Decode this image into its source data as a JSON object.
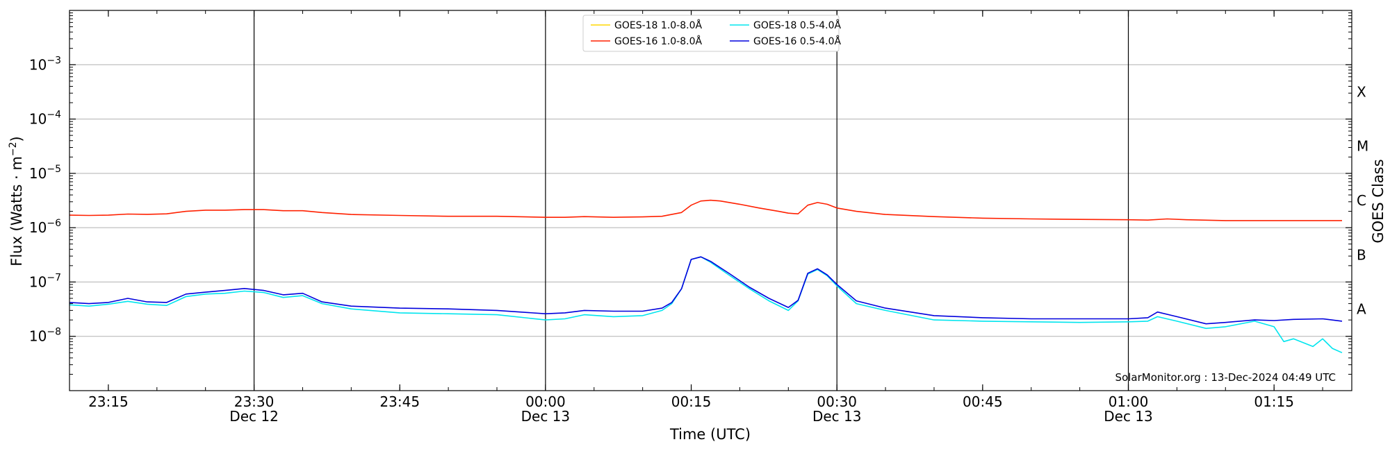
{
  "chart_data": {
    "type": "line",
    "ylabel": "Flux (Watts · m",
    "ylabel_exp": "−2",
    "ylabel_close": ")",
    "xlabel": "Time (UTC)",
    "right_label": "GOES Class",
    "credit": "SolarMonitor.org : 13-Dec-2024 04:49 UTC",
    "y_scale": "log",
    "ylim": [
      1e-09,
      0.01
    ],
    "xlim": [
      "2024-12-12 23:11",
      "2024-12-13 01:23"
    ],
    "grid": "horizontal",
    "legend_position": "top-center",
    "y_ticks": [
      {
        "value": 1e-08,
        "base": "10",
        "exp": "−8"
      },
      {
        "value": 1e-07,
        "base": "10",
        "exp": "−7"
      },
      {
        "value": 1e-06,
        "base": "10",
        "exp": "−6"
      },
      {
        "value": 1e-05,
        "base": "10",
        "exp": "−5"
      },
      {
        "value": 0.0001,
        "base": "10",
        "exp": "−4"
      },
      {
        "value": 0.001,
        "base": "10",
        "exp": "−3"
      }
    ],
    "x_ticks": [
      {
        "time": "2024-12-12 23:15",
        "label": "23:15",
        "sublabel": ""
      },
      {
        "time": "2024-12-12 23:30",
        "label": "23:30",
        "sublabel": "Dec 12"
      },
      {
        "time": "2024-12-12 23:45",
        "label": "23:45",
        "sublabel": ""
      },
      {
        "time": "2024-12-13 00:00",
        "label": "00:00",
        "sublabel": "Dec 13"
      },
      {
        "time": "2024-12-13 00:15",
        "label": "00:15",
        "sublabel": ""
      },
      {
        "time": "2024-12-13 00:30",
        "label": "00:30",
        "sublabel": "Dec 13"
      },
      {
        "time": "2024-12-13 00:45",
        "label": "00:45",
        "sublabel": ""
      },
      {
        "time": "2024-12-13 01:00",
        "label": "01:00",
        "sublabel": "Dec 13"
      },
      {
        "time": "2024-12-13 01:15",
        "label": "01:15",
        "sublabel": ""
      }
    ],
    "vlines": [
      "2024-12-12 23:30",
      "2024-12-13 00:00",
      "2024-12-13 00:30",
      "2024-12-13 01:00"
    ],
    "goes_classes": [
      {
        "label": "A",
        "value": 3.16e-08
      },
      {
        "label": "B",
        "value": 3.16e-07
      },
      {
        "label": "C",
        "value": 3.16e-06
      },
      {
        "label": "M",
        "value": 3.16e-05
      },
      {
        "label": "X",
        "value": 0.000316
      }
    ],
    "series": [
      {
        "name": "GOES-18 1.0-8.0Å",
        "color": "#ffd700",
        "points": []
      },
      {
        "name": "GOES-16 1.0-8.0Å",
        "color": "#ff2000",
        "points": [
          [
            "2024-12-12 23:11",
            1.7e-06
          ],
          [
            "2024-12-12 23:13",
            1.68e-06
          ],
          [
            "2024-12-12 23:15",
            1.7e-06
          ],
          [
            "2024-12-12 23:17",
            1.78e-06
          ],
          [
            "2024-12-12 23:19",
            1.76e-06
          ],
          [
            "2024-12-12 23:21",
            1.8e-06
          ],
          [
            "2024-12-12 23:23",
            2e-06
          ],
          [
            "2024-12-12 23:25",
            2.1e-06
          ],
          [
            "2024-12-12 23:27",
            2.1e-06
          ],
          [
            "2024-12-12 23:29",
            2.15e-06
          ],
          [
            "2024-12-12 23:31",
            2.15e-06
          ],
          [
            "2024-12-12 23:33",
            2.05e-06
          ],
          [
            "2024-12-12 23:35",
            2.05e-06
          ],
          [
            "2024-12-12 23:37",
            1.9e-06
          ],
          [
            "2024-12-12 23:40",
            1.75e-06
          ],
          [
            "2024-12-12 23:45",
            1.68e-06
          ],
          [
            "2024-12-12 23:50",
            1.62e-06
          ],
          [
            "2024-12-12 23:55",
            1.62e-06
          ],
          [
            "2024-12-13 00:00",
            1.55e-06
          ],
          [
            "2024-12-13 00:02",
            1.55e-06
          ],
          [
            "2024-12-13 00:04",
            1.6e-06
          ],
          [
            "2024-12-13 00:07",
            1.55e-06
          ],
          [
            "2024-12-13 00:10",
            1.58e-06
          ],
          [
            "2024-12-13 00:12",
            1.62e-06
          ],
          [
            "2024-12-13 00:14",
            1.9e-06
          ],
          [
            "2024-12-13 00:15",
            2.6e-06
          ],
          [
            "2024-12-13 00:16",
            3.1e-06
          ],
          [
            "2024-12-13 00:17",
            3.2e-06
          ],
          [
            "2024-12-13 00:18",
            3.1e-06
          ],
          [
            "2024-12-13 00:20",
            2.7e-06
          ],
          [
            "2024-12-13 00:22",
            2.3e-06
          ],
          [
            "2024-12-13 00:24",
            2e-06
          ],
          [
            "2024-12-13 00:25",
            1.85e-06
          ],
          [
            "2024-12-13 00:26",
            1.8e-06
          ],
          [
            "2024-12-13 00:27",
            2.6e-06
          ],
          [
            "2024-12-13 00:28",
            2.9e-06
          ],
          [
            "2024-12-13 00:29",
            2.7e-06
          ],
          [
            "2024-12-13 00:30",
            2.3e-06
          ],
          [
            "2024-12-13 00:32",
            2e-06
          ],
          [
            "2024-12-13 00:35",
            1.75e-06
          ],
          [
            "2024-12-13 00:40",
            1.6e-06
          ],
          [
            "2024-12-13 00:45",
            1.5e-06
          ],
          [
            "2024-12-13 00:50",
            1.45e-06
          ],
          [
            "2024-12-13 00:55",
            1.42e-06
          ],
          [
            "2024-12-13 01:00",
            1.4e-06
          ],
          [
            "2024-12-13 01:02",
            1.38e-06
          ],
          [
            "2024-12-13 01:04",
            1.45e-06
          ],
          [
            "2024-12-13 01:06",
            1.4e-06
          ],
          [
            "2024-12-13 01:10",
            1.35e-06
          ],
          [
            "2024-12-13 01:15",
            1.35e-06
          ],
          [
            "2024-12-13 01:22",
            1.35e-06
          ]
        ]
      },
      {
        "name": "GOES-18 0.5-4.0Å",
        "color": "#00e5ee",
        "points": [
          [
            "2024-12-12 23:11",
            3.8e-08
          ],
          [
            "2024-12-12 23:13",
            3.6e-08
          ],
          [
            "2024-12-12 23:15",
            3.9e-08
          ],
          [
            "2024-12-12 23:17",
            4.4e-08
          ],
          [
            "2024-12-12 23:19",
            3.9e-08
          ],
          [
            "2024-12-12 23:21",
            3.7e-08
          ],
          [
            "2024-12-12 23:23",
            5.4e-08
          ],
          [
            "2024-12-12 23:25",
            6e-08
          ],
          [
            "2024-12-12 23:27",
            6.2e-08
          ],
          [
            "2024-12-12 23:29",
            6.8e-08
          ],
          [
            "2024-12-12 23:31",
            6.4e-08
          ],
          [
            "2024-12-12 23:33",
            5.2e-08
          ],
          [
            "2024-12-12 23:35",
            5.6e-08
          ],
          [
            "2024-12-12 23:37",
            4e-08
          ],
          [
            "2024-12-12 23:40",
            3.2e-08
          ],
          [
            "2024-12-12 23:45",
            2.7e-08
          ],
          [
            "2024-12-12 23:50",
            2.6e-08
          ],
          [
            "2024-12-12 23:55",
            2.5e-08
          ],
          [
            "2024-12-13 00:00",
            2e-08
          ],
          [
            "2024-12-13 00:02",
            2.1e-08
          ],
          [
            "2024-12-13 00:04",
            2.5e-08
          ],
          [
            "2024-12-13 00:07",
            2.3e-08
          ],
          [
            "2024-12-13 00:10",
            2.4e-08
          ],
          [
            "2024-12-13 00:12",
            3e-08
          ],
          [
            "2024-12-13 00:13",
            4e-08
          ],
          [
            "2024-12-13 00:14",
            7.5e-08
          ],
          [
            "2024-12-13 00:15",
            2.6e-07
          ],
          [
            "2024-12-13 00:16",
            2.9e-07
          ],
          [
            "2024-12-13 00:17",
            2.3e-07
          ],
          [
            "2024-12-13 00:19",
            1.3e-07
          ],
          [
            "2024-12-13 00:21",
            7.5e-08
          ],
          [
            "2024-12-13 00:23",
            4.5e-08
          ],
          [
            "2024-12-13 00:25",
            3e-08
          ],
          [
            "2024-12-13 00:26",
            4.5e-08
          ],
          [
            "2024-12-13 00:27",
            1.4e-07
          ],
          [
            "2024-12-13 00:28",
            1.7e-07
          ],
          [
            "2024-12-13 00:29",
            1.3e-07
          ],
          [
            "2024-12-13 00:30",
            8.5e-08
          ],
          [
            "2024-12-13 00:32",
            4e-08
          ],
          [
            "2024-12-13 00:35",
            3e-08
          ],
          [
            "2024-12-13 00:40",
            2e-08
          ],
          [
            "2024-12-13 00:45",
            1.9e-08
          ],
          [
            "2024-12-13 00:50",
            1.85e-08
          ],
          [
            "2024-12-13 00:55",
            1.8e-08
          ],
          [
            "2024-12-13 01:00",
            1.85e-08
          ],
          [
            "2024-12-13 01:02",
            1.9e-08
          ],
          [
            "2024-12-13 01:03",
            2.3e-08
          ],
          [
            "2024-12-13 01:05",
            1.9e-08
          ],
          [
            "2024-12-13 01:08",
            1.4e-08
          ],
          [
            "2024-12-13 01:10",
            1.5e-08
          ],
          [
            "2024-12-13 01:13",
            1.9e-08
          ],
          [
            "2024-12-13 01:15",
            1.5e-08
          ],
          [
            "2024-12-13 01:16",
            8e-09
          ],
          [
            "2024-12-13 01:17",
            9e-09
          ],
          [
            "2024-12-13 01:19",
            6.5e-09
          ],
          [
            "2024-12-13 01:20",
            9e-09
          ],
          [
            "2024-12-13 01:21",
            6e-09
          ],
          [
            "2024-12-13 01:22",
            5e-09
          ]
        ]
      },
      {
        "name": "GOES-16 0.5-4.0Å",
        "color": "#0000dd",
        "points": [
          [
            "2024-12-12 23:11",
            4.2e-08
          ],
          [
            "2024-12-12 23:13",
            4e-08
          ],
          [
            "2024-12-12 23:15",
            4.2e-08
          ],
          [
            "2024-12-12 23:17",
            5e-08
          ],
          [
            "2024-12-12 23:19",
            4.3e-08
          ],
          [
            "2024-12-12 23:21",
            4.2e-08
          ],
          [
            "2024-12-12 23:23",
            6e-08
          ],
          [
            "2024-12-12 23:25",
            6.5e-08
          ],
          [
            "2024-12-12 23:27",
            7e-08
          ],
          [
            "2024-12-12 23:29",
            7.6e-08
          ],
          [
            "2024-12-12 23:31",
            7e-08
          ],
          [
            "2024-12-12 23:33",
            5.8e-08
          ],
          [
            "2024-12-12 23:35",
            6.2e-08
          ],
          [
            "2024-12-12 23:37",
            4.3e-08
          ],
          [
            "2024-12-12 23:40",
            3.6e-08
          ],
          [
            "2024-12-12 23:45",
            3.3e-08
          ],
          [
            "2024-12-12 23:50",
            3.2e-08
          ],
          [
            "2024-12-12 23:55",
            3e-08
          ],
          [
            "2024-12-13 00:00",
            2.6e-08
          ],
          [
            "2024-12-13 00:02",
            2.7e-08
          ],
          [
            "2024-12-13 00:04",
            3e-08
          ],
          [
            "2024-12-13 00:07",
            2.9e-08
          ],
          [
            "2024-12-13 00:10",
            2.9e-08
          ],
          [
            "2024-12-13 00:12",
            3.3e-08
          ],
          [
            "2024-12-13 00:13",
            4.2e-08
          ],
          [
            "2024-12-13 00:14",
            7.5e-08
          ],
          [
            "2024-12-13 00:15",
            2.6e-07
          ],
          [
            "2024-12-13 00:16",
            2.9e-07
          ],
          [
            "2024-12-13 00:17",
            2.4e-07
          ],
          [
            "2024-12-13 00:19",
            1.4e-07
          ],
          [
            "2024-12-13 00:21",
            8e-08
          ],
          [
            "2024-12-13 00:23",
            5e-08
          ],
          [
            "2024-12-13 00:25",
            3.4e-08
          ],
          [
            "2024-12-13 00:26",
            4.6e-08
          ],
          [
            "2024-12-13 00:27",
            1.45e-07
          ],
          [
            "2024-12-13 00:28",
            1.75e-07
          ],
          [
            "2024-12-13 00:29",
            1.35e-07
          ],
          [
            "2024-12-13 00:30",
            9e-08
          ],
          [
            "2024-12-13 00:32",
            4.5e-08
          ],
          [
            "2024-12-13 00:35",
            3.3e-08
          ],
          [
            "2024-12-13 00:40",
            2.4e-08
          ],
          [
            "2024-12-13 00:45",
            2.2e-08
          ],
          [
            "2024-12-13 00:50",
            2.1e-08
          ],
          [
            "2024-12-13 00:55",
            2.1e-08
          ],
          [
            "2024-12-13 01:00",
            2.1e-08
          ],
          [
            "2024-12-13 01:02",
            2.2e-08
          ],
          [
            "2024-12-13 01:03",
            2.8e-08
          ],
          [
            "2024-12-13 01:05",
            2.3e-08
          ],
          [
            "2024-12-13 01:08",
            1.7e-08
          ],
          [
            "2024-12-13 01:10",
            1.8e-08
          ],
          [
            "2024-12-13 01:13",
            2e-08
          ],
          [
            "2024-12-13 01:15",
            1.95e-08
          ],
          [
            "2024-12-13 01:17",
            2.05e-08
          ],
          [
            "2024-12-13 01:20",
            2.1e-08
          ],
          [
            "2024-12-13 01:22",
            1.9e-08
          ]
        ]
      }
    ]
  }
}
